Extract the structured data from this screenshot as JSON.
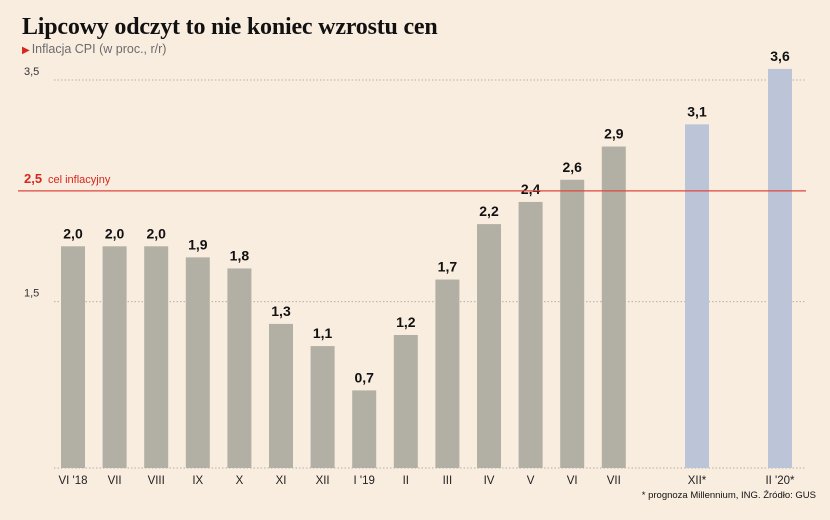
{
  "header": {
    "title": "Lipcowy odczyt to nie koniec wzrostu cen",
    "subtitle": "Inflacja CPI (w proc., r/r)"
  },
  "footnote": "* prognoza Millennium, ING. Źródło: GUS",
  "colors": {
    "actual": "#b2b0a4",
    "forecast": "#bcc5d8",
    "target_line": "#e0463c",
    "background": "#f9ede0"
  },
  "chart_data": {
    "type": "bar",
    "title": "Lipcowy odczyt to nie koniec wzrostu cen",
    "subtitle": "Inflacja CPI (w proc., r/r)",
    "categories": [
      "VI '18",
      "VII",
      "VIII",
      "IX",
      "X",
      "XI",
      "XII",
      "I '19",
      "II",
      "III",
      "IV",
      "V",
      "VI",
      "VII",
      "XII*",
      "II '20*"
    ],
    "values": [
      2.0,
      2.0,
      2.0,
      1.9,
      1.8,
      1.3,
      1.1,
      0.7,
      1.2,
      1.7,
      2.2,
      2.4,
      2.6,
      2.9,
      3.1,
      3.6
    ],
    "value_labels": [
      "2,0",
      "2,0",
      "2,0",
      "1,9",
      "1,8",
      "1,3",
      "1,1",
      "0,7",
      "1,2",
      "1,7",
      "2,2",
      "2,4",
      "2,6",
      "2,9",
      "3,1",
      "3,6"
    ],
    "forecast": [
      false,
      false,
      false,
      false,
      false,
      false,
      false,
      false,
      false,
      false,
      false,
      false,
      false,
      false,
      true,
      true
    ],
    "y_ticks": [
      {
        "value": 1.5,
        "label": "1,5"
      },
      {
        "value": 3.5,
        "label": "3,5"
      }
    ],
    "ylim": [
      0,
      3.7
    ],
    "reference_line": {
      "value": 2.5,
      "value_label": "2,5",
      "label": "cel inflacyjny"
    },
    "grid": "dotted horizontal at ticks"
  }
}
